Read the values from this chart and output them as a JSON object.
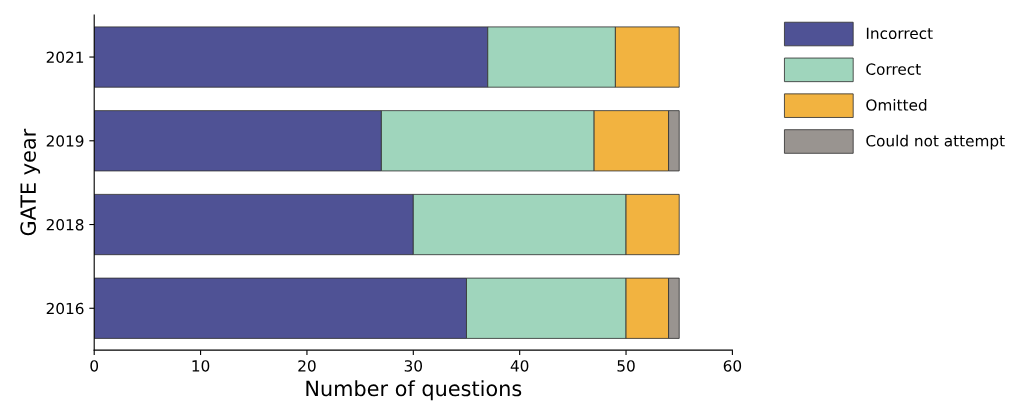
{
  "chart_data": {
    "type": "bar",
    "orientation": "horizontal",
    "stacked": true,
    "categories": [
      "2021",
      "2019",
      "2018",
      "2016"
    ],
    "xlabel": "Number of questions",
    "ylabel": "GATE year",
    "xlim": [
      0,
      60
    ],
    "xticks": [
      0,
      10,
      20,
      30,
      40,
      50,
      60
    ],
    "series": [
      {
        "name": "Incorrect",
        "color": "#4f5295",
        "values": [
          37,
          27,
          30,
          35
        ]
      },
      {
        "name": "Correct",
        "color": "#9fd5bc",
        "values": [
          12,
          20,
          20,
          15
        ]
      },
      {
        "name": "Omitted",
        "color": "#f2b340",
        "values": [
          6,
          7,
          5,
          4
        ]
      },
      {
        "name": "Could not attempt",
        "color": "#999490",
        "values": [
          null,
          1,
          null,
          1
        ]
      }
    ],
    "grid": false,
    "legend": "right"
  }
}
